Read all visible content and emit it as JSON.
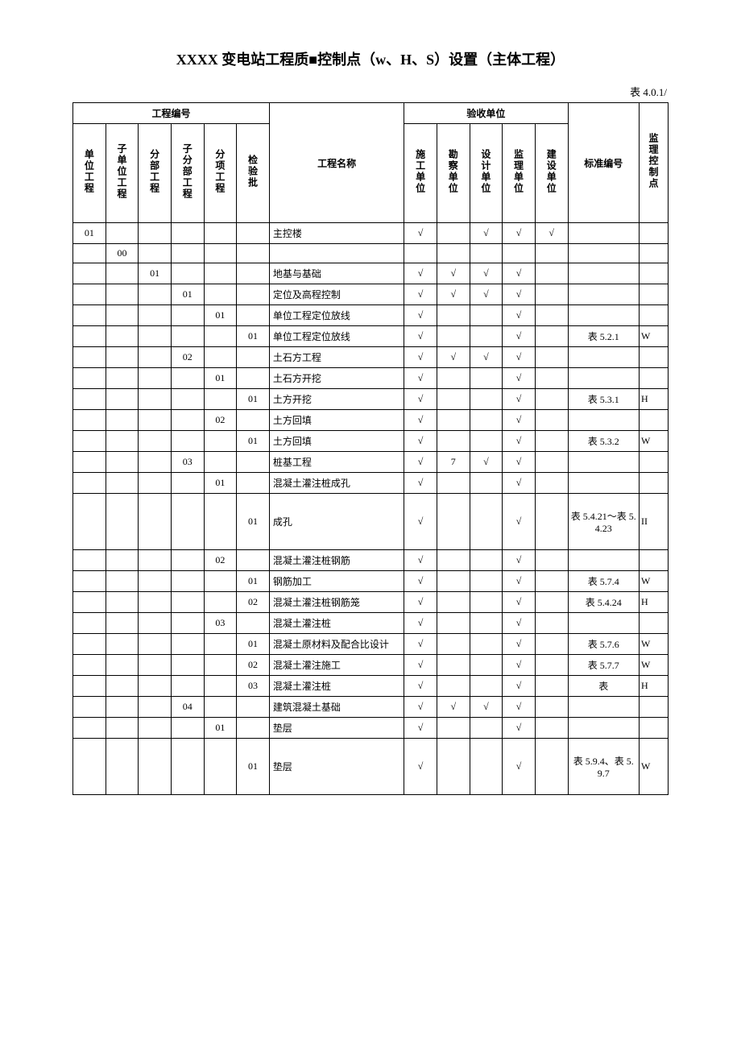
{
  "title": "XXXX 变电站工程质■控制点（w、H、S）设置（主体工程）",
  "table_number": "表 4.0.1/",
  "check": "√",
  "header": {
    "project_no_group": "工程编号",
    "accept_unit_group": "验收单位",
    "cols": {
      "unit_proj": "单位工程",
      "sub_unit_proj": "子单位工程",
      "div_proj": "分部工程",
      "sub_div_proj": "子分部工程",
      "item_proj": "分项工程",
      "insp_batch": "检验批",
      "proj_name": "工程名称",
      "cons_unit": "施工单位",
      "survey_unit": "勘察单位",
      "design_unit": "设计单位",
      "supv_unit": "监理单位",
      "build_unit": "建设单位",
      "std_no": "标准编号",
      "ctrl_pt": "监理控制点"
    }
  },
  "rows": [
    {
      "c1": "01",
      "c2": "",
      "c3": "",
      "c4": "",
      "c5": "",
      "c6": "",
      "name": "主控楼",
      "u1": "√",
      "u2": "",
      "u3": "√",
      "u4": "√",
      "u5": "√",
      "std": "",
      "ctrl": ""
    },
    {
      "c1": "",
      "c2": "00",
      "c3": "",
      "c4": "",
      "c5": "",
      "c6": "",
      "name": "",
      "u1": "",
      "u2": "",
      "u3": "",
      "u4": "",
      "u5": "",
      "std": "",
      "ctrl": ""
    },
    {
      "c1": "",
      "c2": "",
      "c3": "01",
      "c4": "",
      "c5": "",
      "c6": "",
      "name": "地基与基础",
      "u1": "√",
      "u2": "√",
      "u3": "√",
      "u4": "√",
      "u5": "",
      "std": "",
      "ctrl": ""
    },
    {
      "c1": "",
      "c2": "",
      "c3": "",
      "c4": "01",
      "c5": "",
      "c6": "",
      "name": "定位及高程控制",
      "u1": "√",
      "u2": "√",
      "u3": "√",
      "u4": "√",
      "u5": "",
      "std": "",
      "ctrl": ""
    },
    {
      "c1": "",
      "c2": "",
      "c3": "",
      "c4": "",
      "c5": "01",
      "c6": "",
      "name": "单位工程定位放线",
      "u1": "√",
      "u2": "",
      "u3": "",
      "u4": "√",
      "u5": "",
      "std": "",
      "ctrl": ""
    },
    {
      "c1": "",
      "c2": "",
      "c3": "",
      "c4": "",
      "c5": "",
      "c6": "01",
      "name": "单位工程定位放线",
      "u1": "√",
      "u2": "",
      "u3": "",
      "u4": "√",
      "u5": "",
      "std": "表 5.2.1",
      "ctrl": "W"
    },
    {
      "c1": "",
      "c2": "",
      "c3": "",
      "c4": "02",
      "c5": "",
      "c6": "",
      "name": "土石方工程",
      "u1": "√",
      "u2": "√",
      "u3": "√",
      "u4": "√",
      "u5": "",
      "std": "",
      "ctrl": ""
    },
    {
      "c1": "",
      "c2": "",
      "c3": "",
      "c4": "",
      "c5": "01",
      "c6": "",
      "name": "土石方开挖",
      "u1": "√",
      "u2": "",
      "u3": "",
      "u4": "√",
      "u5": "",
      "std": "",
      "ctrl": ""
    },
    {
      "c1": "",
      "c2": "",
      "c3": "",
      "c4": "",
      "c5": "",
      "c6": "01",
      "name": "土方开挖",
      "u1": "√",
      "u2": "",
      "u3": "",
      "u4": "√",
      "u5": "",
      "std": "表 5.3.1",
      "ctrl": "H"
    },
    {
      "c1": "",
      "c2": "",
      "c3": "",
      "c4": "",
      "c5": "02",
      "c6": "",
      "name": "土方回填",
      "u1": "√",
      "u2": "",
      "u3": "",
      "u4": "√",
      "u5": "",
      "std": "",
      "ctrl": ""
    },
    {
      "c1": "",
      "c2": "",
      "c3": "",
      "c4": "",
      "c5": "",
      "c6": "01",
      "name": "土方回填",
      "u1": "√",
      "u2": "",
      "u3": "",
      "u4": "√",
      "u5": "",
      "std": "表 5.3.2",
      "ctrl": "W"
    },
    {
      "c1": "",
      "c2": "",
      "c3": "",
      "c4": "03",
      "c5": "",
      "c6": "",
      "name": "桩基工程",
      "u1": "√",
      "u2": "7",
      "u3": "√",
      "u4": "√",
      "u5": "",
      "std": "",
      "ctrl": ""
    },
    {
      "c1": "",
      "c2": "",
      "c3": "",
      "c4": "",
      "c5": "01",
      "c6": "",
      "name": "混凝土灌注桩成孔",
      "u1": "√",
      "u2": "",
      "u3": "",
      "u4": "√",
      "u5": "",
      "std": "",
      "ctrl": ""
    },
    {
      "c1": "",
      "c2": "",
      "c3": "",
      "c4": "",
      "c5": "",
      "c6": "01",
      "name": "成孔",
      "u1": "√",
      "u2": "",
      "u3": "",
      "u4": "√",
      "u5": "",
      "std": "表 5.4.21～表 5.4.23",
      "ctrl": "II",
      "tall": true
    },
    {
      "c1": "",
      "c2": "",
      "c3": "",
      "c4": "",
      "c5": "02",
      "c6": "",
      "name": "混凝土灌注桩钢筋",
      "u1": "√",
      "u2": "",
      "u3": "",
      "u4": "√",
      "u5": "",
      "std": "",
      "ctrl": ""
    },
    {
      "c1": "",
      "c2": "",
      "c3": "",
      "c4": "",
      "c5": "",
      "c6": "01",
      "name": "钢筋加工",
      "u1": "√",
      "u2": "",
      "u3": "",
      "u4": "√",
      "u5": "",
      "std": "表 5.7.4",
      "ctrl": "W"
    },
    {
      "c1": "",
      "c2": "",
      "c3": "",
      "c4": "",
      "c5": "",
      "c6": "02",
      "name": "混凝土灌注桩钢筋笼",
      "u1": "√",
      "u2": "",
      "u3": "",
      "u4": "√",
      "u5": "",
      "std": "表 5.4.24",
      "ctrl": "H"
    },
    {
      "c1": "",
      "c2": "",
      "c3": "",
      "c4": "",
      "c5": "03",
      "c6": "",
      "name": "混凝土灌注桩",
      "u1": "√",
      "u2": "",
      "u3": "",
      "u4": "√",
      "u5": "",
      "std": "",
      "ctrl": ""
    },
    {
      "c1": "",
      "c2": "",
      "c3": "",
      "c4": "",
      "c5": "",
      "c6": "01",
      "name": "混凝土原材料及配合比设计",
      "u1": "√",
      "u2": "",
      "u3": "",
      "u4": "√",
      "u5": "",
      "std": "表 5.7.6",
      "ctrl": "W"
    },
    {
      "c1": "",
      "c2": "",
      "c3": "",
      "c4": "",
      "c5": "",
      "c6": "02",
      "name": "混凝土灌注施工",
      "u1": "√",
      "u2": "",
      "u3": "",
      "u4": "√",
      "u5": "",
      "std": "表 5.7.7",
      "ctrl": "W"
    },
    {
      "c1": "",
      "c2": "",
      "c3": "",
      "c4": "",
      "c5": "",
      "c6": "03",
      "name": "混凝土灌注桩",
      "u1": "√",
      "u2": "",
      "u3": "",
      "u4": "√",
      "u5": "",
      "std": "表",
      "ctrl": "H"
    },
    {
      "c1": "",
      "c2": "",
      "c3": "",
      "c4": "04",
      "c5": "",
      "c6": "",
      "name": "建筑混凝土基础",
      "u1": "√",
      "u2": "√",
      "u3": "√",
      "u4": "√",
      "u5": "",
      "std": "",
      "ctrl": ""
    },
    {
      "c1": "",
      "c2": "",
      "c3": "",
      "c4": "",
      "c5": "01",
      "c6": "",
      "name": "垫层",
      "u1": "√",
      "u2": "",
      "u3": "",
      "u4": "√",
      "u5": "",
      "std": "",
      "ctrl": ""
    },
    {
      "c1": "",
      "c2": "",
      "c3": "",
      "c4": "",
      "c5": "",
      "c6": "01",
      "name": "垫层",
      "u1": "√",
      "u2": "",
      "u3": "",
      "u4": "√",
      "u5": "",
      "std": "表 5.9.4、表 5.9.7",
      "ctrl": "W",
      "tall": true
    }
  ]
}
